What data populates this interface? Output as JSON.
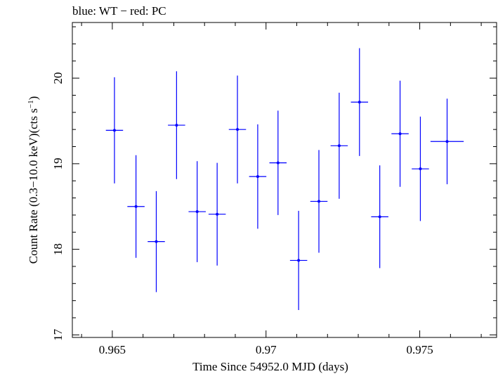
{
  "chart_data": {
    "type": "scatter",
    "title": "blue: WT − red: PC",
    "xlabel": "Time Since 54952.0 MJD (days)",
    "ylabel": "Count Rate (0.3−10.0 keV)(cts s",
    "ylabel_exp": "−1",
    "ylabel_close": ")",
    "xlim": [
      0.9637,
      0.9775
    ],
    "ylim": [
      16.97,
      20.65
    ],
    "x_ticks": [
      {
        "value": 0.965,
        "label": "0.965"
      },
      {
        "value": 0.97,
        "label": "0.97"
      },
      {
        "value": 0.975,
        "label": "0.975"
      }
    ],
    "y_ticks": [
      {
        "value": 17,
        "label": "17"
      },
      {
        "value": 18,
        "label": "18"
      },
      {
        "value": 19,
        "label": "19"
      },
      {
        "value": 20,
        "label": "20"
      }
    ],
    "series": [
      {
        "color": "#0000ff",
        "points": [
          {
            "x": 0.96507,
            "xerr": 0.00028,
            "y": 19.39,
            "yerr": 0.62
          },
          {
            "x": 0.96577,
            "xerr": 0.00028,
            "y": 18.5,
            "yerr": 0.6
          },
          {
            "x": 0.96643,
            "xerr": 0.00028,
            "y": 18.09,
            "yerr": 0.59
          },
          {
            "x": 0.96709,
            "xerr": 0.00028,
            "y": 19.45,
            "yerr": 0.63
          },
          {
            "x": 0.96776,
            "xerr": 0.00028,
            "y": 18.44,
            "yerr": 0.59
          },
          {
            "x": 0.96841,
            "xerr": 0.00028,
            "y": 18.41,
            "yerr": 0.6
          },
          {
            "x": 0.96907,
            "xerr": 0.00028,
            "y": 19.4,
            "yerr": 0.63
          },
          {
            "x": 0.96973,
            "xerr": 0.00028,
            "y": 18.85,
            "yerr": 0.61
          },
          {
            "x": 0.97039,
            "xerr": 0.00028,
            "y": 19.01,
            "yerr": 0.61
          },
          {
            "x": 0.97106,
            "xerr": 0.00028,
            "y": 17.87,
            "yerr": 0.58
          },
          {
            "x": 0.97172,
            "xerr": 0.00028,
            "y": 18.56,
            "yerr": 0.6
          },
          {
            "x": 0.97238,
            "xerr": 0.00028,
            "y": 19.21,
            "yerr": 0.62
          },
          {
            "x": 0.97304,
            "xerr": 0.00028,
            "y": 19.72,
            "yerr": 0.63
          },
          {
            "x": 0.9737,
            "xerr": 0.00028,
            "y": 18.38,
            "yerr": 0.6
          },
          {
            "x": 0.97436,
            "xerr": 0.00028,
            "y": 19.35,
            "yerr": 0.62
          },
          {
            "x": 0.97502,
            "xerr": 0.00028,
            "y": 18.94,
            "yerr": 0.61
          },
          {
            "x": 0.97589,
            "xerr": 0.00054,
            "y": 19.26,
            "yerr": 0.5
          }
        ]
      }
    ]
  }
}
